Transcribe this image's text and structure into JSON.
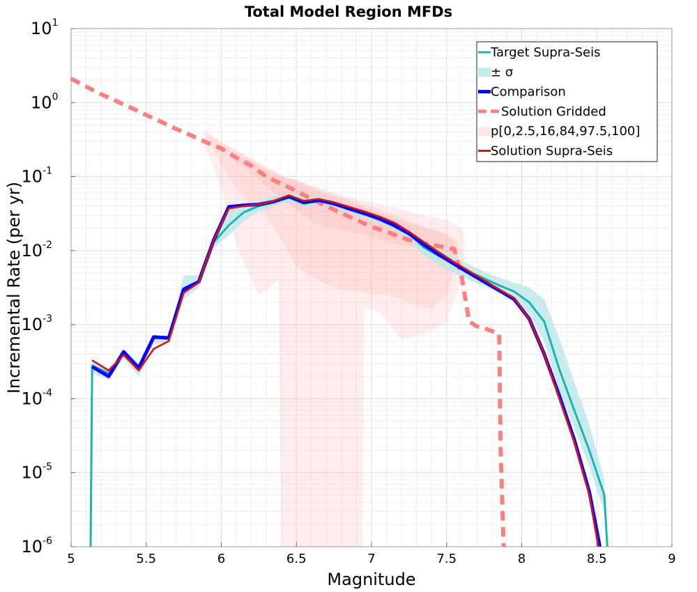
{
  "chart_data": {
    "type": "line",
    "title": "Total Model Region MFDs",
    "xlabel": "Magnitude",
    "ylabel": "Incremental Rate (per yr)",
    "xlim": [
      5,
      9
    ],
    "ylim": [
      1e-06,
      10
    ],
    "yscale": "log",
    "grid": true,
    "legend_position": "top-right",
    "x_ticks": [
      "5",
      "5.5",
      "6",
      "6.5",
      "7",
      "7.5",
      "8",
      "8.5",
      "9"
    ],
    "y_ticks": [
      {
        "base": "10",
        "exp": "-6"
      },
      {
        "base": "10",
        "exp": "-5"
      },
      {
        "base": "10",
        "exp": "-4"
      },
      {
        "base": "10",
        "exp": "-3"
      },
      {
        "base": "10",
        "exp": "-2"
      },
      {
        "base": "10",
        "exp": "-1"
      },
      {
        "base": "10",
        "exp": "0"
      },
      {
        "base": "10",
        "exp": "1"
      }
    ],
    "legend": [
      {
        "label": "Target Supra-Seis",
        "color": "#1ab4b4",
        "style": "line"
      },
      {
        "label": "± σ",
        "color": "#bfe8e8",
        "style": "band"
      },
      {
        "label": "Comparison",
        "color": "#0000ff",
        "style": "line"
      },
      {
        "label": "Solution Gridded",
        "color": "#ff7f7f",
        "style": "dashed"
      },
      {
        "label": "p[0,2.5,16,84,97.5,100]",
        "color": "#ffe3e3",
        "style": "band"
      },
      {
        "label": "Solution Supra-Seis",
        "color": "#dd1111",
        "style": "line"
      }
    ],
    "series": [
      {
        "name": "Target Supra-Seis",
        "color": "#1ab4b4",
        "x": [
          5.13,
          5.14,
          5.25,
          5.35,
          5.45,
          5.55,
          5.65,
          5.75,
          5.85,
          5.95,
          6.05,
          6.15,
          6.25,
          6.35,
          6.45,
          6.55,
          6.65,
          6.75,
          6.85,
          6.95,
          7.05,
          7.15,
          7.25,
          7.35,
          7.45,
          7.55,
          7.65,
          7.75,
          7.85,
          7.95,
          8.05,
          8.15,
          8.25,
          8.35,
          8.45,
          8.55,
          8.57
        ],
        "y": [
          1e-06,
          0.00028,
          0.00022,
          0.0004,
          0.00025,
          0.00068,
          0.00066,
          0.0029,
          0.0038,
          0.013,
          0.022,
          0.033,
          0.04,
          0.045,
          0.052,
          0.043,
          0.047,
          0.043,
          0.036,
          0.031,
          0.027,
          0.022,
          0.017,
          0.011,
          0.0085,
          0.0066,
          0.0052,
          0.0042,
          0.0034,
          0.0028,
          0.002,
          0.0011,
          0.00025,
          7e-05,
          2e-05,
          5e-06,
          1e-06
        ]
      },
      {
        "name": "Comparison",
        "color": "#0000ff",
        "x": [
          5.14,
          5.25,
          5.35,
          5.45,
          5.55,
          5.65,
          5.75,
          5.85,
          5.95,
          6.05,
          6.15,
          6.25,
          6.35,
          6.45,
          6.55,
          6.65,
          6.75,
          6.85,
          6.95,
          7.05,
          7.15,
          7.25,
          7.35,
          7.45,
          7.55,
          7.65,
          7.75,
          7.85,
          7.95,
          8.05,
          8.15,
          8.25,
          8.35,
          8.45,
          8.52
        ],
        "y": [
          0.00027,
          0.0002,
          0.00043,
          0.00026,
          0.00068,
          0.00066,
          0.003,
          0.0038,
          0.014,
          0.039,
          0.041,
          0.042,
          0.046,
          0.054,
          0.045,
          0.048,
          0.043,
          0.037,
          0.032,
          0.027,
          0.022,
          0.017,
          0.012,
          0.0088,
          0.0066,
          0.005,
          0.0038,
          0.0029,
          0.0022,
          0.0012,
          0.0004,
          0.00011,
          2.8e-05,
          5.5e-06,
          1e-06
        ]
      },
      {
        "name": "Solution Supra-Seis",
        "color": "#dd1111",
        "x": [
          5.14,
          5.25,
          5.35,
          5.45,
          5.55,
          5.65,
          5.75,
          5.85,
          5.95,
          6.05,
          6.15,
          6.25,
          6.35,
          6.45,
          6.55,
          6.65,
          6.75,
          6.85,
          6.95,
          7.05,
          7.15,
          7.25,
          7.35,
          7.45,
          7.55,
          7.65,
          7.75,
          7.85,
          7.95,
          8.05,
          8.15,
          8.25,
          8.35,
          8.45,
          8.51
        ],
        "y": [
          0.00033,
          0.00024,
          0.00039,
          0.00024,
          0.00047,
          0.0006,
          0.0027,
          0.0037,
          0.014,
          0.037,
          0.04,
          0.042,
          0.047,
          0.056,
          0.047,
          0.05,
          0.045,
          0.039,
          0.034,
          0.029,
          0.024,
          0.018,
          0.013,
          0.0095,
          0.007,
          0.0053,
          0.004,
          0.003,
          0.0023,
          0.0012,
          0.0004,
          0.0001,
          2.6e-05,
          5e-06,
          1e-06
        ]
      },
      {
        "name": "Solution Gridded",
        "color": "#ff7f7f",
        "dashed": true,
        "x": [
          5.0,
          5.1,
          5.2,
          5.3,
          5.4,
          5.5,
          5.6,
          5.7,
          5.8,
          5.9,
          6.0,
          6.1,
          6.2,
          6.3,
          6.4,
          6.5,
          6.6,
          6.7,
          6.8,
          6.9,
          7.0,
          7.1,
          7.2,
          7.3,
          7.4,
          7.5,
          7.55,
          7.6,
          7.65,
          7.7,
          7.75,
          7.8,
          7.85,
          7.86,
          7.88
        ],
        "y": [
          2.1,
          1.65,
          1.3,
          1.05,
          0.85,
          0.68,
          0.55,
          0.44,
          0.36,
          0.29,
          0.24,
          0.18,
          0.14,
          0.1,
          0.08,
          0.064,
          0.05,
          0.04,
          0.032,
          0.026,
          0.021,
          0.018,
          0.015,
          0.013,
          0.012,
          0.011,
          0.0105,
          0.0045,
          0.0011,
          0.00095,
          0.0009,
          0.00082,
          0.00075,
          2e-05,
          1e-06
        ]
      }
    ],
    "sigma_band": {
      "color": "#bfe8e8",
      "x": [
        5.14,
        5.25,
        5.35,
        5.45,
        5.55,
        5.65,
        5.75,
        5.85,
        5.95,
        6.05,
        6.15,
        6.25,
        6.35,
        6.45,
        6.55,
        6.65,
        6.75,
        6.85,
        6.95,
        7.05,
        7.15,
        7.25,
        7.35,
        7.45,
        7.55,
        7.65,
        7.75,
        7.85,
        7.95,
        8.05,
        8.15,
        8.25,
        8.35,
        8.45,
        8.55
      ],
      "upper": [
        0.00034,
        0.00026,
        0.00045,
        0.0003,
        0.00072,
        0.0007,
        0.0046,
        0.0047,
        0.016,
        0.034,
        0.043,
        0.047,
        0.054,
        0.06,
        0.053,
        0.054,
        0.048,
        0.04,
        0.034,
        0.029,
        0.024,
        0.019,
        0.014,
        0.011,
        0.0082,
        0.0065,
        0.0052,
        0.0043,
        0.0037,
        0.0032,
        0.0022,
        0.00065,
        0.00017,
        4.5e-05,
        8e-06
      ],
      "lower": [
        0.00022,
        0.00018,
        0.00035,
        0.0002,
        0.00055,
        0.00058,
        0.0022,
        0.0032,
        0.011,
        0.016,
        0.025,
        0.034,
        0.04,
        0.046,
        0.039,
        0.041,
        0.038,
        0.032,
        0.028,
        0.024,
        0.019,
        0.014,
        0.0085,
        0.0062,
        0.005,
        0.004,
        0.0033,
        0.0027,
        0.0022,
        0.0014,
        0.0006,
        0.00013,
        4e-05,
        1.2e-05,
        3e-06
      ]
    },
    "percentile_bands": {
      "color": "#ff9d9d",
      "outer": {
        "x": [
          5.88,
          6.0,
          6.1,
          6.25,
          6.38,
          6.4,
          6.5,
          6.6,
          6.7,
          6.8,
          6.94,
          6.95,
          7.05,
          7.2,
          7.35,
          7.5,
          7.6,
          7.62
        ],
        "upper": [
          0.45,
          0.28,
          0.22,
          0.16,
          0.11,
          0.1,
          0.09,
          0.075,
          0.065,
          0.056,
          0.048,
          0.048,
          0.043,
          0.036,
          0.03,
          0.026,
          0.02,
          0.015
        ],
        "lower": [
          0.3,
          0.07,
          0.012,
          0.0025,
          0.004,
          1e-06,
          1e-06,
          1e-06,
          1e-06,
          1e-06,
          1e-06,
          0.0017,
          0.0015,
          0.00062,
          0.00075,
          0.0011,
          0.004,
          0.012
        ]
      },
      "inner": {
        "x": [
          5.9,
          6.0,
          6.1,
          6.2,
          6.3,
          6.4,
          6.5,
          6.6,
          6.7,
          6.8,
          6.9,
          7.0,
          7.1,
          7.2,
          7.3,
          7.4,
          7.5,
          7.58
        ],
        "upper": [
          0.38,
          0.3,
          0.23,
          0.17,
          0.13,
          0.105,
          0.09,
          0.075,
          0.063,
          0.054,
          0.046,
          0.039,
          0.033,
          0.028,
          0.023,
          0.02,
          0.017,
          0.013
        ],
        "lower": [
          0.36,
          0.14,
          0.07,
          0.04,
          0.03,
          0.014,
          0.006,
          0.0045,
          0.0035,
          0.003,
          0.0028,
          0.0026,
          0.0025,
          0.0022,
          0.0018,
          0.0016,
          0.0025,
          0.009
        ]
      },
      "core": {
        "x": [
          6.1,
          6.2,
          6.3,
          6.4,
          6.5,
          6.6,
          6.7,
          6.8,
          6.9,
          7.0,
          7.1,
          7.2,
          7.3,
          7.4,
          7.5,
          7.55
        ],
        "upper": [
          0.2,
          0.16,
          0.12,
          0.1,
          0.085,
          0.07,
          0.058,
          0.05,
          0.042,
          0.036,
          0.03,
          0.026,
          0.022,
          0.019,
          0.016,
          0.013
        ],
        "lower": [
          0.16,
          0.11,
          0.075,
          0.05,
          0.035,
          0.025,
          0.021,
          0.019,
          0.017,
          0.015,
          0.013,
          0.012,
          0.011,
          0.01,
          0.0095,
          0.0092
        ]
      }
    }
  }
}
